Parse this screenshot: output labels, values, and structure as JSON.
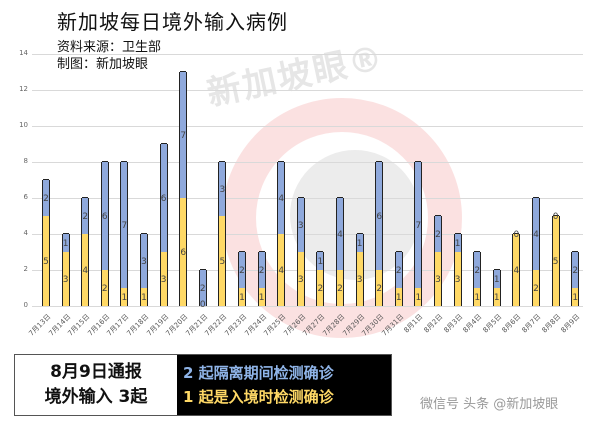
{
  "header": {
    "title": "新加坡每日境外输入病例",
    "source": "资料来源：卫生部",
    "credit": "制图：新加坡眼"
  },
  "watermark": {
    "center": "新加坡眼®",
    "bottom": "微信号 头条 @新加坡眼"
  },
  "colors": {
    "quarantine_blue": "#8FA9DC",
    "entry_yellow": "#FFD966"
  },
  "chart_data": {
    "type": "bar",
    "stacked": true,
    "title": "新加坡每日境外输入病例",
    "xlabel": "",
    "ylabel": "",
    "ylim": [
      0,
      14
    ],
    "yticks": [
      0,
      2,
      4,
      6,
      8,
      10,
      12,
      14
    ],
    "grid": true,
    "categories": [
      "7月13日",
      "7月14日",
      "7月15日",
      "7月16日",
      "7月17日",
      "7月18日",
      "7月19日",
      "7月20日",
      "7月21日",
      "7月22日",
      "7月23日",
      "7月24日",
      "7月25日",
      "7月26日",
      "7月27日",
      "7月28日",
      "7月29日",
      "7月30日",
      "7月31日",
      "8月1日",
      "8月2日",
      "8月3日",
      "8月4日",
      "8月5日",
      "8月6日",
      "8月7日",
      "8月8日",
      "8月9日"
    ],
    "series": [
      {
        "name": "入境时检测确诊",
        "color": "#FFD966",
        "values": [
          5,
          3,
          4,
          2,
          1,
          1,
          3,
          6,
          0,
          5,
          1,
          1,
          4,
          3,
          2,
          2,
          3,
          2,
          1,
          1,
          3,
          3,
          1,
          1,
          4,
          2,
          5,
          1
        ]
      },
      {
        "name": "隔离期间检测确诊",
        "color": "#8FA9DC",
        "values": [
          2,
          1,
          2,
          6,
          7,
          3,
          6,
          7,
          2,
          3,
          2,
          2,
          4,
          3,
          1,
          4,
          1,
          6,
          2,
          7,
          2,
          1,
          2,
          1,
          0,
          4,
          0,
          2
        ]
      }
    ]
  },
  "summary_panel": {
    "left_line1": "8月9日通报",
    "left_line2": "境外输入 3起",
    "right_line1": "2 起隔离期间检测确诊",
    "right_line2": "1 起是入境时检测确诊"
  }
}
